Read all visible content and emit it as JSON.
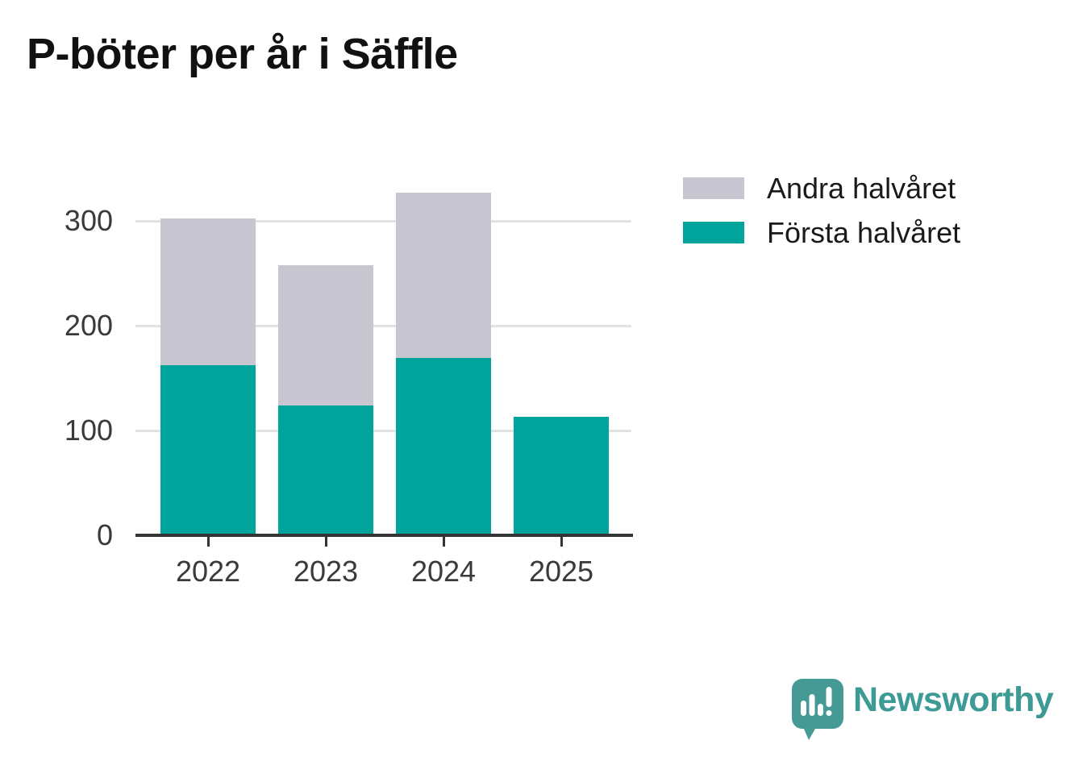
{
  "title": "P-böter per år i Säffle",
  "chart_data": {
    "type": "bar",
    "stacked": true,
    "title": "P-böter per år i Säffle",
    "xlabel": "",
    "ylabel": "",
    "categories": [
      "2022",
      "2023",
      "2024",
      "2025"
    ],
    "series": [
      {
        "name": "Första halvåret",
        "color": "#00a49a",
        "values": [
          162,
          124,
          169,
          113
        ]
      },
      {
        "name": "Andra halvåret",
        "color": "#c8c6d0",
        "values": [
          140,
          134,
          158,
          0
        ]
      }
    ],
    "totals": [
      302,
      258,
      327,
      113
    ],
    "yticks": [
      0,
      100,
      200,
      300
    ],
    "ylim": [
      0,
      335
    ],
    "grid": "horizontal",
    "legend_position": "upper-right-outside"
  },
  "legend": {
    "items": [
      {
        "label": "Andra halvåret",
        "color": "#c8c6d0",
        "icon": "gray-swatch"
      },
      {
        "label": "Första halvåret",
        "color": "#00a49a",
        "icon": "teal-swatch"
      }
    ]
  },
  "branding": {
    "logo_text": "Newsworthy",
    "logo_color": "#3e9a94",
    "logo_icon": "bar-chart-speech-bubble-icon",
    "logo_icon_color": "#459a95"
  },
  "colors": {
    "background": "#ffffff",
    "first_half": "#00a49a",
    "second_half": "#c8c6d0",
    "axis": "#333333",
    "gridline": "#e2e2e2",
    "tick_text": "#3a3a3a",
    "title_text": "#111111",
    "legend_text": "#1a1a1a"
  }
}
